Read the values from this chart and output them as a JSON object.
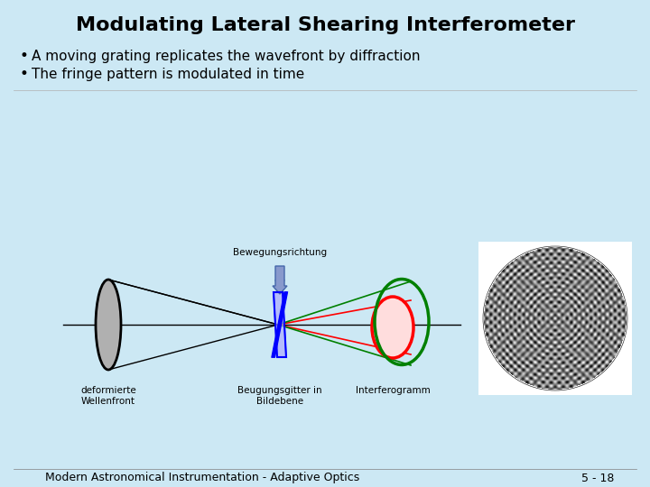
{
  "title": "Modulating Lateral Shearing Interferometer",
  "bullet1": "A moving grating replicates the wavefront by diffraction",
  "bullet2": "The fringe pattern is modulated in time",
  "bg_color": "#cce8f4",
  "label_lens": "deformierte\nWellenfront",
  "label_grating": "Beugungsgitter in\nBildebene",
  "label_interferogram": "Interferogramm",
  "label_bewegung": "Bewegungsrichtung",
  "footer_left": "Modern Astronomical Instrumentation - Adaptive Optics",
  "footer_right": "5 - 18"
}
